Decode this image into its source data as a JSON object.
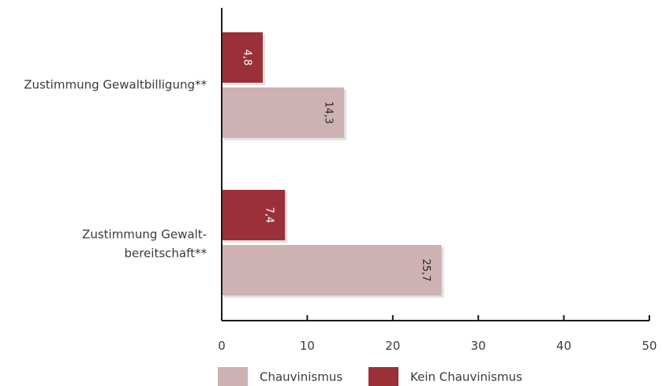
{
  "chart_data": {
    "type": "bar",
    "orientation": "horizontal",
    "categories": [
      [
        "Zustimmung Gewaltbilligung**"
      ],
      [
        "Zustimmung Gewalt-",
        "bereitschaft**"
      ]
    ],
    "series": [
      {
        "name": "Kein Chauvinismus",
        "values": [
          4.8,
          7.4
        ],
        "labels": [
          "4,8",
          "7,4"
        ],
        "color": "#9b3039"
      },
      {
        "name": "Chauvinismus",
        "values": [
          14.3,
          25.7
        ],
        "labels": [
          "14,3",
          "25,7"
        ],
        "color": "#cdb1b3"
      }
    ],
    "xlim": [
      0,
      50
    ],
    "xticks": [
      0,
      10,
      20,
      30,
      40,
      50
    ],
    "legend": {
      "placement": "bottom",
      "order": [
        "Chauvinismus",
        "Kein Chauvinismus"
      ]
    },
    "grid": false
  }
}
